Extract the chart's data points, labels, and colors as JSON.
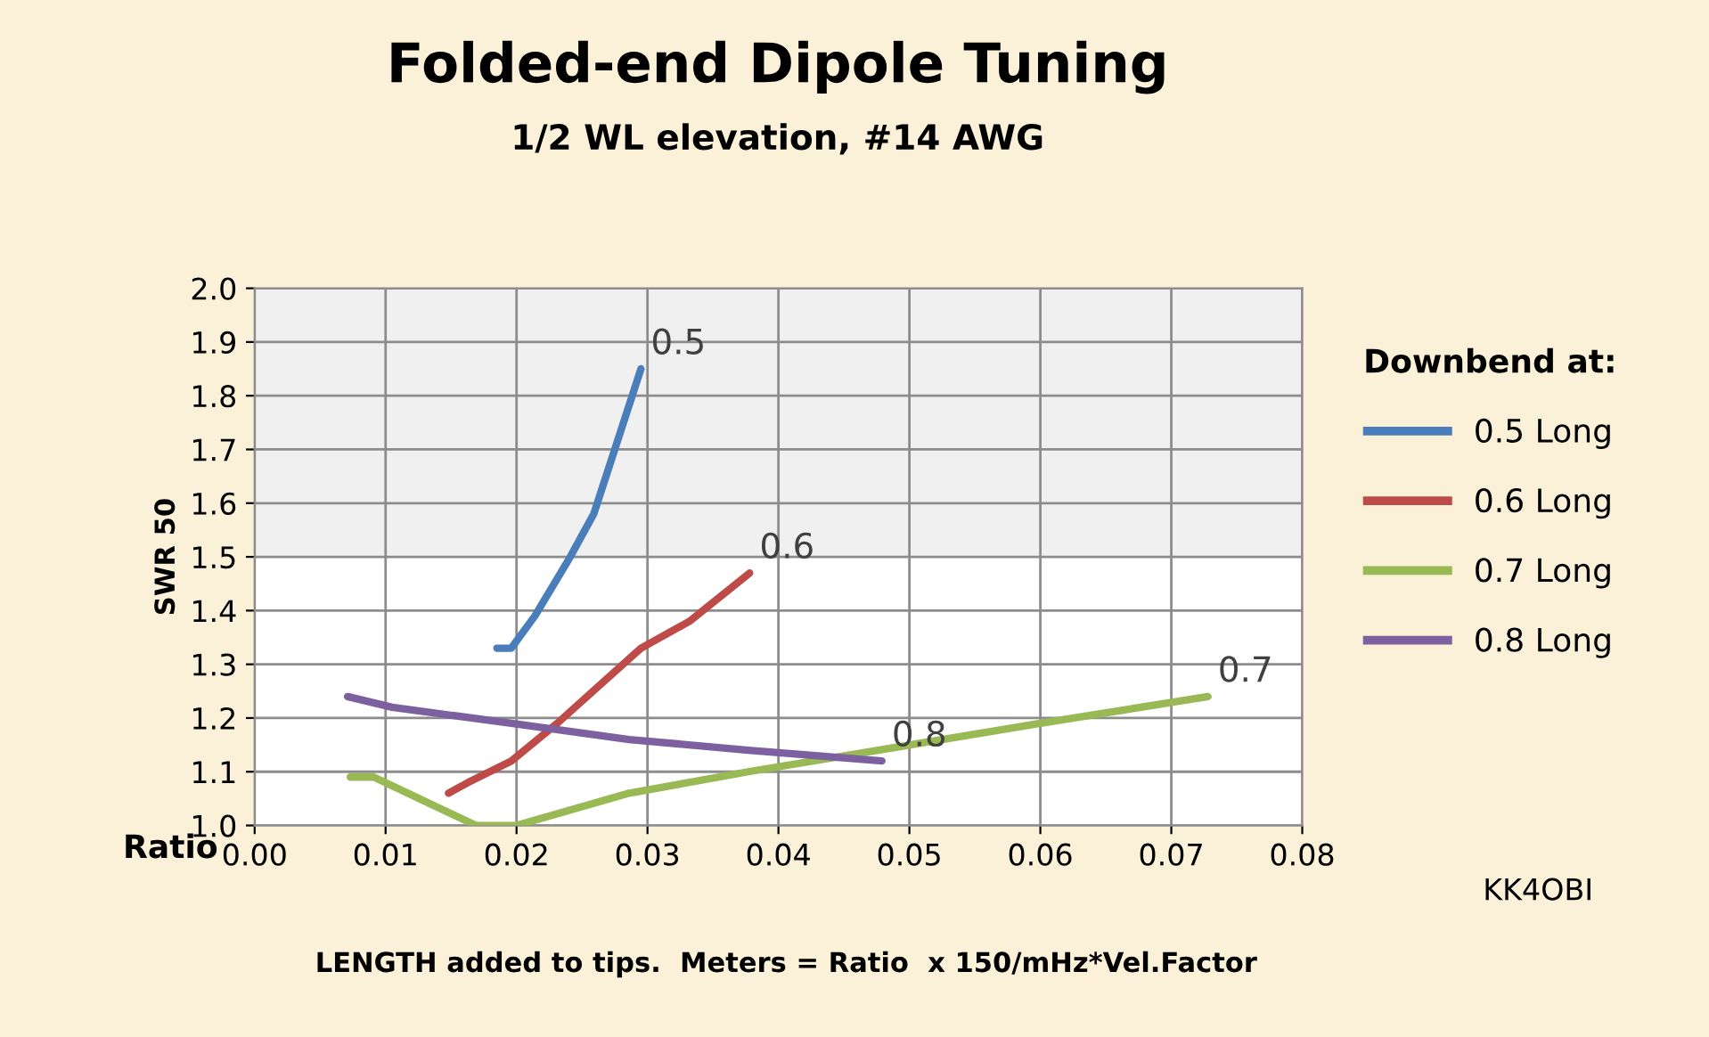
{
  "chart_data": {
    "type": "line",
    "title": "Folded-end Dipole Tuning",
    "subtitle": "1/2 WL elevation, #14 AWG",
    "xlabel": "Ratio",
    "ylabel": "SWR 50",
    "legend_title": "Downbend at:",
    "series": [
      {
        "name": "0.5 Long",
        "color": "#4a7ebb",
        "x": [
          0.0185,
          0.0196,
          0.0214,
          0.0241,
          0.0259,
          0.0295
        ],
        "values": [
          1.33,
          1.33,
          1.39,
          1.5,
          1.58,
          1.85
        ]
      },
      {
        "name": "0.6 Long",
        "color": "#be4b48",
        "x": [
          0.0148,
          0.0163,
          0.0196,
          0.0231,
          0.0295,
          0.0332,
          0.0378
        ],
        "values": [
          1.06,
          1.08,
          1.12,
          1.19,
          1.33,
          1.38,
          1.47
        ]
      },
      {
        "name": "0.7 Long",
        "color": "#98b954",
        "x": [
          0.0073,
          0.0091,
          0.0169,
          0.02,
          0.0286,
          0.0377,
          0.06,
          0.0728
        ],
        "values": [
          1.09,
          1.09,
          1.0,
          1.0,
          1.06,
          1.1,
          1.19,
          1.24
        ]
      },
      {
        "name": "0.8 Long",
        "color": "#7d60a0",
        "x": [
          0.0071,
          0.0105,
          0.0196,
          0.0286,
          0.0377,
          0.0479
        ],
        "values": [
          1.24,
          1.22,
          1.19,
          1.16,
          1.14,
          1.12
        ]
      }
    ],
    "xlim": [
      0,
      0.08
    ],
    "xticks": [
      {
        "value": 0,
        "label": "0.00"
      },
      {
        "value": 0.01,
        "label": "0.01"
      },
      {
        "value": 0.02,
        "label": "0.02"
      },
      {
        "value": 0.03,
        "label": "0.03"
      },
      {
        "value": 0.04,
        "label": "0.04"
      },
      {
        "value": 0.05,
        "label": "0.05"
      },
      {
        "value": 0.06,
        "label": "0.06"
      },
      {
        "value": 0.07,
        "label": "0.07"
      },
      {
        "value": 0.08,
        "label": "0.08"
      }
    ],
    "ylim": [
      1.0,
      2.0
    ],
    "yticks": [
      {
        "value": 1.0,
        "label": "1.0"
      },
      {
        "value": 1.1,
        "label": "1.1"
      },
      {
        "value": 1.2,
        "label": "1.2"
      },
      {
        "value": 1.3,
        "label": "1.3"
      },
      {
        "value": 1.4,
        "label": "1.4"
      },
      {
        "value": 1.5,
        "label": "1.5"
      },
      {
        "value": 1.6,
        "label": "1.6"
      },
      {
        "value": 1.7,
        "label": "1.7"
      },
      {
        "value": 1.8,
        "label": "1.8"
      },
      {
        "value": 1.9,
        "label": "1.9"
      },
      {
        "value": 2.0,
        "label": "2.0"
      }
    ],
    "bands": [
      {
        "axis": "y",
        "from": 1.5,
        "to": 2.0,
        "color": "#f0f0f0"
      }
    ],
    "grid": true,
    "legend": "right",
    "marker": "none",
    "line_style": "solid",
    "annotations": [
      {
        "text": "0.5",
        "x": 0.0295,
        "y": 1.85
      },
      {
        "text": "0.6",
        "x": 0.0378,
        "y": 1.47
      },
      {
        "text": "0.7",
        "x": 0.0728,
        "y": 1.24
      },
      {
        "text": "0.8",
        "x": 0.0479,
        "y": 1.12
      },
      "LENGTH added to tips.  Meters = Ratio  x 150/mHz*Vel.Factor",
      "KK4OBI"
    ]
  }
}
